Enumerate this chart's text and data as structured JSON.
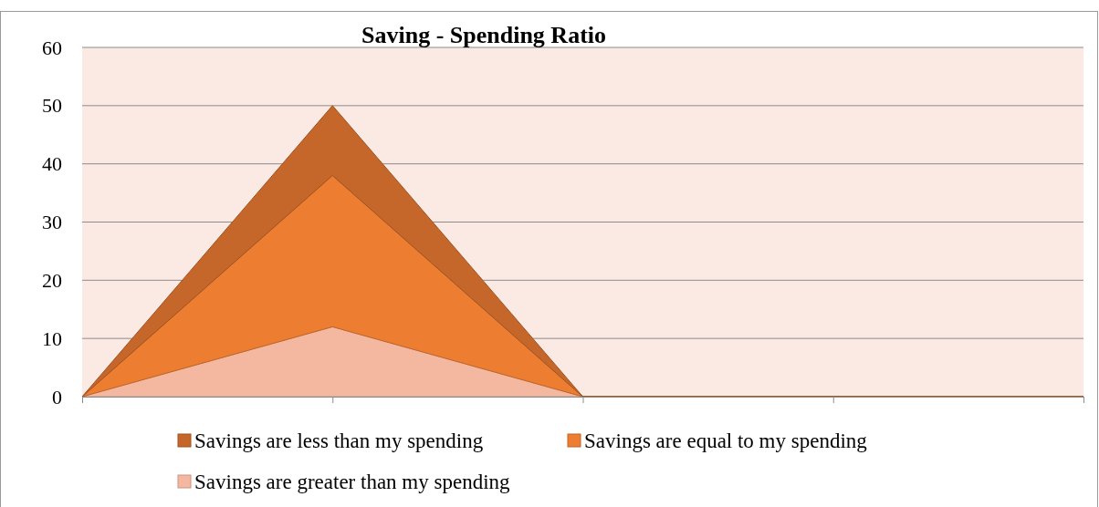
{
  "chart_data": {
    "type": "area",
    "title": "Saving - Spending Ratio",
    "stacked": true,
    "categories": [
      null,
      null,
      null,
      null,
      null
    ],
    "series": [
      {
        "name": "Savings are greater than my spending",
        "color": "#f4b8a0",
        "values": [
          0,
          12,
          0,
          0,
          0
        ]
      },
      {
        "name": "Savings are equal to my spending",
        "color": "#ed7d31",
        "values": [
          0,
          26,
          0,
          0,
          0
        ]
      },
      {
        "name": "Savings are less than my spending",
        "color": "#c5672a",
        "values": [
          0,
          12,
          0,
          0,
          0
        ]
      }
    ],
    "ylim": [
      0,
      60
    ],
    "yticks": [
      0,
      10,
      20,
      30,
      40,
      50,
      60
    ],
    "grid": "y",
    "legend": "bottom"
  }
}
